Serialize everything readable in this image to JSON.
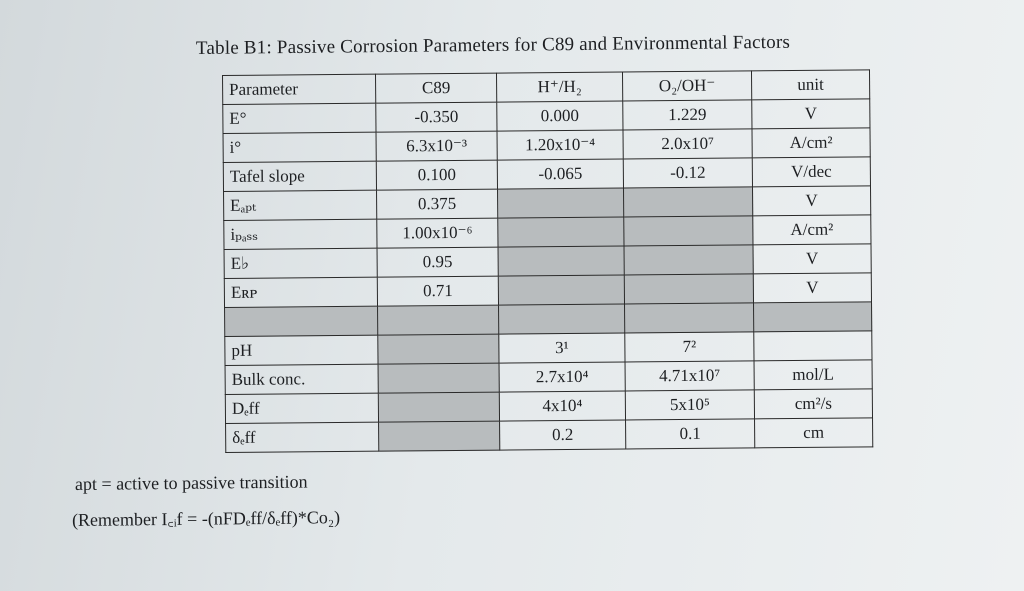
{
  "title": "Table B1: Passive Corrosion Parameters for C89 and Environmental Factors",
  "table": {
    "header": [
      "Parameter",
      "C89",
      "H⁺/H₂",
      "O₂/OH⁻",
      "unit"
    ],
    "rows": [
      {
        "param": "E°",
        "c89": "-0.350",
        "h": "0.000",
        "o": "1.229",
        "unit": "V"
      },
      {
        "param": "i°",
        "c89": "6.3x10⁻³",
        "h": "1.20x10⁻⁴",
        "o": "2.0x10⁷",
        "unit": "A/cm²"
      },
      {
        "param": "Tafel slope",
        "c89": "0.100",
        "h": "-0.065",
        "o": "-0.12",
        "unit": "V/dec"
      },
      {
        "param": "Eₐₚₜ",
        "c89": "0.375",
        "h": "",
        "o": "",
        "unit": "V"
      },
      {
        "param": "iₚₐₛₛ",
        "c89": "1.00x10⁻⁶",
        "h": "",
        "o": "",
        "unit": "A/cm²"
      },
      {
        "param": "E♭",
        "c89": "0.95",
        "h": "",
        "o": "",
        "unit": "V"
      },
      {
        "param": "Eʀᴘ",
        "c89": "0.71",
        "h": "",
        "o": "",
        "unit": "V"
      },
      {
        "param": "",
        "c89": "",
        "h": "",
        "o": "",
        "unit": ""
      },
      {
        "param": "pH",
        "c89": "",
        "h": "3¹",
        "o": "7²",
        "unit": ""
      },
      {
        "param": "Bulk conc.",
        "c89": "",
        "h": "2.7x10⁴",
        "o": "4.71x10⁷",
        "unit": "mol/L"
      },
      {
        "param": "Dₑff",
        "c89": "",
        "h": "4x10⁴",
        "o": "5x10⁵",
        "unit": "cm²/s"
      },
      {
        "param": "δₑff",
        "c89": "",
        "h": "0.2",
        "o": "0.1",
        "unit": "cm"
      }
    ]
  },
  "notes": {
    "apt": "apt = active to passive transition",
    "remember": "(Remember I꜀ᵢf = -(nFDₑff/δₑff)*Co₂)"
  },
  "colors": {
    "shade": "#b8bcbe",
    "ink": "#1d1f22"
  }
}
